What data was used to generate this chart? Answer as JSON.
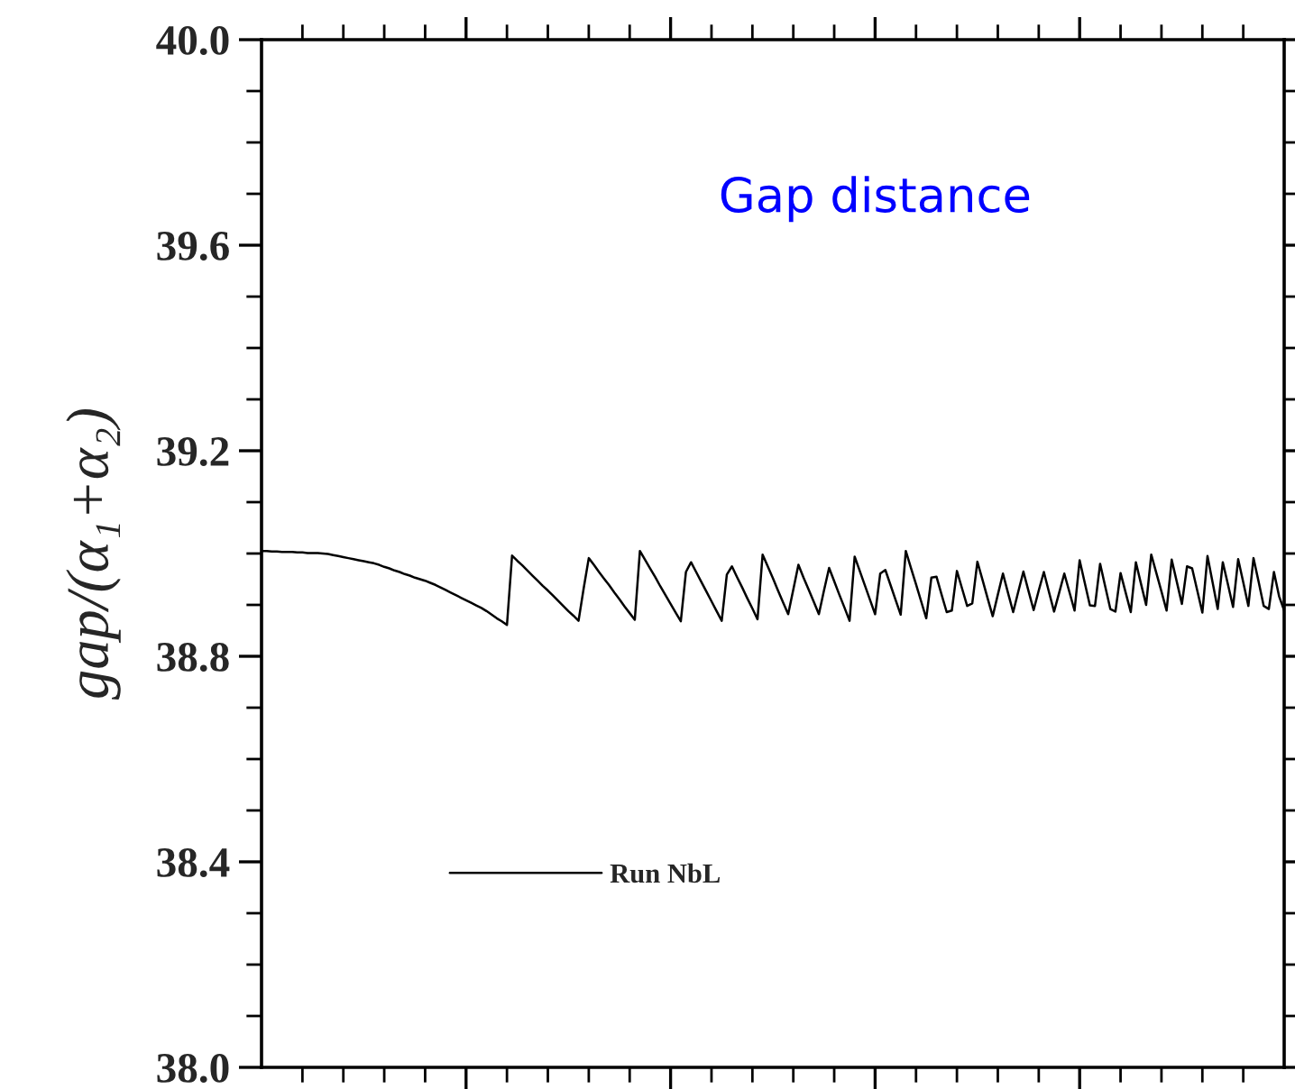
{
  "chart_data": {
    "type": "line",
    "title": "Gap distance",
    "ylabel": "gap/(α₁+α₂)",
    "categories": [
      null,
      null,
      null,
      null,
      null,
      null,
      null,
      null,
      null,
      null,
      null,
      null,
      null,
      null,
      null,
      null,
      null,
      null,
      null,
      null,
      null,
      null,
      null,
      null,
      null,
      null,
      null,
      null,
      null,
      null,
      null,
      null,
      null,
      null,
      null,
      null,
      null,
      null,
      null,
      null,
      null,
      null,
      null,
      null,
      null,
      null,
      null,
      null,
      null,
      null,
      null,
      null,
      null,
      null,
      null,
      null,
      null,
      null,
      null,
      null,
      null,
      null,
      null,
      null,
      null,
      null,
      null,
      null,
      null,
      null,
      null,
      null,
      null,
      null,
      null,
      null,
      null,
      null,
      null,
      null,
      null,
      null,
      null,
      null,
      null,
      null,
      null,
      null,
      null,
      null,
      null,
      null,
      null,
      null,
      null,
      null,
      null,
      null,
      null,
      null,
      null,
      null,
      null,
      null,
      null,
      null,
      null,
      null,
      null,
      null,
      null,
      null,
      null,
      null,
      null,
      null,
      null,
      null,
      null,
      null,
      null,
      null,
      null,
      null,
      null,
      null,
      null,
      null,
      null,
      null,
      null,
      null,
      null,
      null,
      null,
      null,
      null,
      null,
      null,
      null,
      null,
      null,
      null,
      null,
      null,
      null,
      null,
      null,
      null,
      null,
      null,
      null,
      null,
      null,
      null,
      null,
      null,
      null,
      null,
      null,
      null,
      null,
      null,
      null,
      null,
      null,
      null,
      null,
      null,
      null,
      null,
      null,
      null,
      null,
      null,
      null,
      null,
      null,
      null,
      null,
      null,
      null,
      null,
      null,
      null,
      null,
      null,
      null,
      null,
      null,
      null,
      null,
      null,
      null,
      null,
      null,
      null,
      null,
      null,
      null,
      null
    ],
    "ylim": [
      38.0,
      40.0
    ],
    "yticks": [
      {
        "value": 38.0,
        "label": "38.0"
      },
      {
        "value": 38.4,
        "label": "38.4"
      },
      {
        "value": 38.8,
        "label": "38.8"
      },
      {
        "value": 39.2,
        "label": "39.2"
      },
      {
        "value": 39.6,
        "label": "39.6"
      },
      {
        "value": 40.0,
        "label": "40.0"
      }
    ],
    "tick_labels": "y",
    "legend": "bottom left",
    "marker": "none",
    "line_style": "solid",
    "series": [
      {
        "name": "Run NbL",
        "color": "#000000",
        "values": [
          39.005,
          39.005,
          39.004,
          39.004,
          39.003,
          39.003,
          39.003,
          39.002,
          39.002,
          39.001,
          39.001,
          39.001,
          39.0,
          38.999,
          38.997,
          38.995,
          38.993,
          38.991,
          38.989,
          38.987,
          38.985,
          38.983,
          38.981,
          38.978,
          38.974,
          38.971,
          38.967,
          38.964,
          38.96,
          38.957,
          38.953,
          38.95,
          38.947,
          38.943,
          38.939,
          38.934,
          38.929,
          38.924,
          38.919,
          38.914,
          38.909,
          38.904,
          38.899,
          38.894,
          38.888,
          38.881,
          38.874,
          38.868,
          38.861,
          38.996,
          38.986,
          38.977,
          38.967,
          38.957,
          38.947,
          38.937,
          38.928,
          38.918,
          38.908,
          38.898,
          38.888,
          38.879,
          38.869,
          38.932,
          38.991,
          38.978,
          38.964,
          38.951,
          38.938,
          38.924,
          38.911,
          38.897,
          38.884,
          38.871,
          39.005,
          38.988,
          38.971,
          38.954,
          38.936,
          38.919,
          38.902,
          38.885,
          38.868,
          38.964,
          38.983,
          38.964,
          38.945,
          38.926,
          38.907,
          38.888,
          38.869,
          38.959,
          38.975,
          38.954,
          38.934,
          38.913,
          38.893,
          38.872,
          38.998,
          38.975,
          38.952,
          38.928,
          38.905,
          38.882,
          38.93,
          38.978,
          38.953,
          38.93,
          38.906,
          38.882,
          38.928,
          38.972,
          38.946,
          38.92,
          38.895,
          38.869,
          38.994,
          38.966,
          38.938,
          38.91,
          38.882,
          38.961,
          38.968,
          38.939,
          38.91,
          38.881,
          39.005,
          38.972,
          38.94,
          38.907,
          38.874,
          38.953,
          38.955,
          38.92,
          38.886,
          38.889,
          38.966,
          38.932,
          38.898,
          38.903,
          38.984,
          38.949,
          38.913,
          38.878,
          38.92,
          38.961,
          38.923,
          38.886,
          38.926,
          38.965,
          38.927,
          38.89,
          38.928,
          38.964,
          38.925,
          38.887,
          38.924,
          38.961,
          38.925,
          38.889,
          38.987,
          38.943,
          38.899,
          38.898,
          38.98,
          38.936,
          38.892,
          38.887,
          38.962,
          38.924,
          38.886,
          38.983,
          38.941,
          38.9,
          38.998,
          38.962,
          38.926,
          38.889,
          38.988,
          38.945,
          38.902,
          38.975,
          38.971,
          38.928,
          38.885,
          38.995,
          38.944,
          38.892,
          38.983,
          38.94,
          38.896,
          38.989,
          38.944,
          38.898,
          38.991,
          38.945,
          38.898,
          38.892,
          38.964,
          38.917,
          38.889
        ]
      }
    ]
  }
}
